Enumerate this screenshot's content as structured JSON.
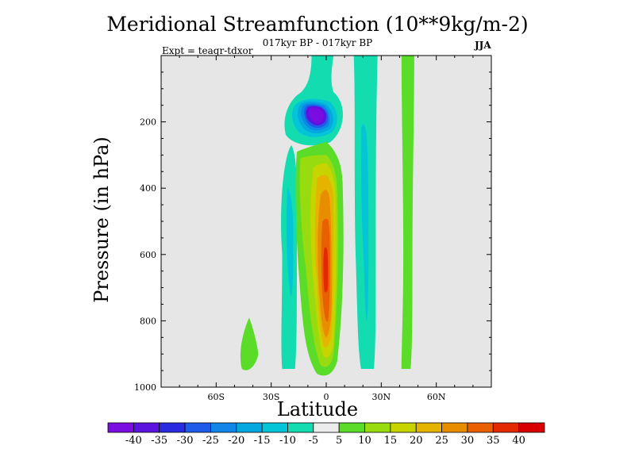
{
  "chart_data": {
    "type": "contour",
    "title": "Meridional Streamfunction (10**9kg/m-2)",
    "subtitle": "017kyr BP - 017kyr BP",
    "experiment": "Expt = teaqr-tdxor",
    "season": "JJA",
    "xlabel": "Latitude",
    "ylabel": "Pressure (in hPa)",
    "xlim": [
      -90,
      90
    ],
    "ylim": [
      1000,
      0
    ],
    "x_ticks": [
      {
        "v": -60,
        "label": "60S"
      },
      {
        "v": -30,
        "label": "30S"
      },
      {
        "v": 0,
        "label": "0"
      },
      {
        "v": 30,
        "label": "30N"
      },
      {
        "v": 60,
        "label": "60N"
      }
    ],
    "y_ticks": [
      {
        "v": 200,
        "label": "200"
      },
      {
        "v": 400,
        "label": "400"
      },
      {
        "v": 600,
        "label": "600"
      },
      {
        "v": 800,
        "label": "800"
      },
      {
        "v": 1000,
        "label": "1000"
      }
    ],
    "background_color": "#e6e6e6",
    "colorbar": {
      "levels": [
        -40,
        -35,
        -30,
        -25,
        -20,
        -15,
        -10,
        -5,
        5,
        10,
        15,
        20,
        25,
        30,
        35,
        40
      ],
      "labels": [
        "-40",
        "-35",
        "-30",
        "-25",
        "-20",
        "-15",
        "-10",
        "-5",
        "5",
        "10",
        "15",
        "20",
        "25",
        "30",
        "35",
        "40"
      ],
      "colors": [
        "#7a0ee0",
        "#5b14e0",
        "#2a2ae0",
        "#1d5be8",
        "#0f86e8",
        "#04a8e0",
        "#04c4d8",
        "#12dcb0",
        "#ececec",
        "#5adc28",
        "#98dc10",
        "#c8d400",
        "#e4b400",
        "#e88c00",
        "#e86000",
        "#e42800",
        "#d80000"
      ]
    },
    "features": [
      {
        "name": "upper-negative-cell",
        "lat": [
          -14,
          2
        ],
        "p": [
          120,
          260
        ],
        "min": -40
      },
      {
        "name": "positive-tropical-cell",
        "lat": [
          -8,
          8
        ],
        "p": [
          290,
          960
        ],
        "max": 40
      },
      {
        "name": "negative-band-20s",
        "lat": [
          -25,
          -18
        ],
        "p": [
          270,
          950
        ],
        "min": -15
      },
      {
        "name": "negative-band-20n",
        "lat": [
          15,
          28
        ],
        "p": [
          0,
          950
        ],
        "min": -20
      },
      {
        "name": "positive-band-45n",
        "lat": [
          40,
          48
        ],
        "p": [
          0,
          950
        ],
        "max": 10
      },
      {
        "name": "positive-blob-40s",
        "lat": [
          -46,
          -38
        ],
        "p": [
          790,
          950
        ],
        "max": 10
      }
    ]
  }
}
